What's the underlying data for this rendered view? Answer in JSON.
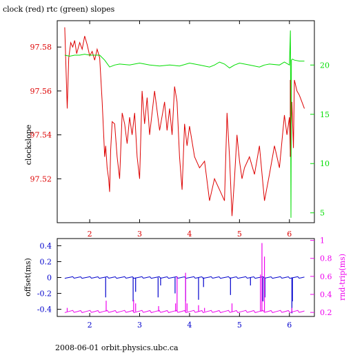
{
  "title": "clock (red) rtc (green) slopes",
  "footer": "2008-06-01  orbit.physics.ubc.ca",
  "colors": {
    "frame": "#000000",
    "red": "#dd0000",
    "green": "#00dd00",
    "blue": "#0000cc",
    "magenta": "#ee00ee",
    "darkred": "#993300"
  },
  "chart_data": [
    {
      "type": "line",
      "x_range": [
        1.35,
        6.5
      ],
      "x_ticks": [
        2,
        3,
        4,
        5,
        6
      ],
      "ylabel": "clockslope",
      "y_range": [
        97.5,
        97.592
      ],
      "y_ticks": [
        97.52,
        97.54,
        97.56,
        97.58
      ],
      "y_ticks_fmt": [
        "97.52",
        "97.54",
        "97.56",
        "97.58"
      ],
      "y2_range": [
        4,
        24.5
      ],
      "y2_ticks": [
        5,
        10,
        15,
        20
      ],
      "series": [
        {
          "color": "red",
          "axis": "left",
          "x": [
            1.5,
            1.55,
            1.58,
            1.62,
            1.66,
            1.7,
            1.74,
            1.8,
            1.85,
            1.9,
            1.95,
            2.0,
            2.05,
            2.1,
            2.15,
            2.2,
            2.25,
            2.28,
            2.3,
            2.32,
            2.35,
            2.38,
            2.4,
            2.42,
            2.45,
            2.5,
            2.55,
            2.6,
            2.65,
            2.7,
            2.75,
            2.8,
            2.85,
            2.9,
            2.95,
            3.0,
            3.05,
            3.1,
            3.15,
            3.2,
            3.3,
            3.4,
            3.5,
            3.55,
            3.6,
            3.65,
            3.7,
            3.75,
            3.8,
            3.85,
            3.9,
            3.95,
            4.0,
            4.1,
            4.2,
            4.3,
            4.4,
            4.5,
            4.6,
            4.7,
            4.75,
            4.8,
            4.85,
            4.9,
            4.95,
            5.0,
            5.05,
            5.1,
            5.2,
            5.3,
            5.4,
            5.5,
            5.6,
            5.7,
            5.8,
            5.9,
            5.95,
            6.0,
            6.02,
            6.05,
            6.08,
            6.1,
            6.15,
            6.2,
            6.25,
            6.3
          ],
          "y": [
            97.589,
            97.552,
            97.575,
            97.582,
            97.58,
            97.583,
            97.577,
            97.582,
            97.579,
            97.585,
            97.581,
            97.576,
            97.578,
            97.574,
            97.579,
            97.575,
            97.555,
            97.54,
            97.53,
            97.535,
            97.525,
            97.52,
            97.514,
            97.533,
            97.546,
            97.545,
            97.53,
            97.52,
            97.55,
            97.545,
            97.536,
            97.548,
            97.54,
            97.55,
            97.53,
            97.52,
            97.56,
            97.545,
            97.557,
            97.54,
            97.56,
            97.542,
            97.555,
            97.542,
            97.552,
            97.54,
            97.562,
            97.555,
            97.53,
            97.515,
            97.545,
            97.535,
            97.544,
            97.53,
            97.525,
            97.528,
            97.51,
            97.52,
            97.515,
            97.51,
            97.55,
            97.53,
            97.503,
            97.52,
            97.54,
            97.528,
            97.52,
            97.525,
            97.53,
            97.522,
            97.535,
            97.51,
            97.522,
            97.535,
            97.525,
            97.549,
            97.54,
            97.548,
            97.53,
            97.555,
            97.534,
            97.565,
            97.56,
            97.558,
            97.555,
            97.552
          ]
        },
        {
          "color": "green",
          "axis": "right",
          "x": [
            1.5,
            1.6,
            1.7,
            1.8,
            1.9,
            2.0,
            2.1,
            2.2,
            2.3,
            2.4,
            2.5,
            2.6,
            2.8,
            3.0,
            3.2,
            3.4,
            3.6,
            3.8,
            4.0,
            4.2,
            4.4,
            4.5,
            4.6,
            4.7,
            4.8,
            4.9,
            5.0,
            5.2,
            5.4,
            5.5,
            5.6,
            5.8,
            5.9,
            6.0,
            6.02,
            6.03,
            6.04,
            6.06,
            6.1,
            6.2,
            6.3
          ],
          "y": [
            21.0,
            20.9,
            21.0,
            21.0,
            21.1,
            21.0,
            21.0,
            21.0,
            20.5,
            19.8,
            20.0,
            20.1,
            20.0,
            20.2,
            20.0,
            19.9,
            20.0,
            19.9,
            20.2,
            20.0,
            19.8,
            20.0,
            20.3,
            20.1,
            19.7,
            20.0,
            20.2,
            20.0,
            19.8,
            20.0,
            20.1,
            20.0,
            20.3,
            20.0,
            23.5,
            4.5,
            20.5,
            20.6,
            20.5,
            20.4,
            20.4
          ]
        }
      ]
    },
    {
      "type": "line",
      "x_range": [
        1.35,
        6.5
      ],
      "x_ticks": [
        2,
        3,
        4,
        5,
        6
      ],
      "ylabel": "offset(ms)",
      "y_range": [
        -0.49,
        0.49
      ],
      "y_ticks": [
        -0.4,
        -0.2,
        0,
        0.2,
        0.4
      ],
      "y_ticks_fmt": [
        "-0.4",
        "-0.2",
        "0",
        "0.2",
        "0.4"
      ],
      "y2label": "rnd-trip(ms)",
      "y2_range": [
        0.155,
        1.02
      ],
      "y2_ticks": [
        0.2,
        0.4,
        0.6,
        0.8,
        1
      ],
      "y2_ticks_fmt": [
        "0.2",
        "0.4",
        "0.6",
        "0.8",
        "1"
      ],
      "series": [
        {
          "color": "blue",
          "axis": "left",
          "baseline": 0,
          "spikes_x": [
            2.32,
            2.87,
            2.92,
            3.37,
            3.42,
            3.71,
            3.92,
            4.18,
            4.28,
            4.82,
            5.22,
            5.47,
            5.51,
            6.05,
            6.06
          ],
          "spikes_y": [
            -0.25,
            -0.3,
            -0.18,
            -0.25,
            -0.1,
            -0.2,
            -0.3,
            -0.28,
            -0.12,
            -0.22,
            -0.1,
            -0.3,
            -0.25,
            -0.45,
            -0.3
          ]
        },
        {
          "color": "magenta",
          "axis": "right",
          "baseline": 0.21,
          "spikes_x": [
            1.55,
            2.33,
            2.88,
            2.92,
            3.38,
            3.72,
            3.75,
            3.92,
            3.95,
            4.18,
            4.3,
            4.85,
            5.42,
            5.45,
            5.5,
            6.05
          ],
          "spikes_y": [
            0.25,
            0.33,
            0.34,
            0.3,
            0.27,
            0.3,
            0.6,
            0.64,
            0.3,
            0.28,
            0.25,
            0.3,
            0.62,
            0.97,
            0.82,
            0.25
          ]
        }
      ]
    }
  ]
}
